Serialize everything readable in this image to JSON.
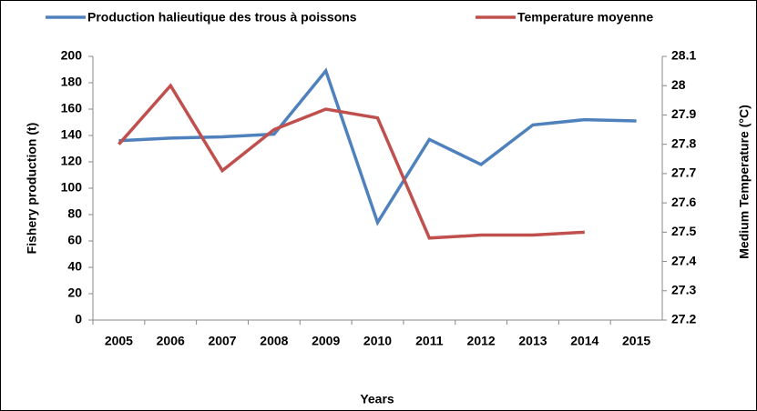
{
  "chart_data": {
    "type": "line",
    "x_label": "Years",
    "y_label": "Fishery production (t)",
    "y2_label": "Medium Temperature  (°C)",
    "categories": [
      "2005",
      "2006",
      "2007",
      "2008",
      "2009",
      "2010",
      "2011",
      "2012",
      "2013",
      "2014",
      "2015"
    ],
    "series": [
      {
        "name": "Production halieutique des trous à poissons",
        "color": "#4f81bd",
        "values": [
          136,
          138,
          139,
          141,
          189,
          74,
          137,
          118,
          148,
          152,
          151
        ]
      },
      {
        "name": "Temperature moyenne",
        "color": "#c0504d",
        "axis": "y2",
        "values": [
          27.8,
          28.0,
          27.71,
          27.85,
          27.92,
          27.89,
          27.48,
          27.49,
          27.49,
          27.5,
          null
        ]
      }
    ],
    "ylim": [
      0,
      200
    ],
    "yticks": [
      0,
      20,
      40,
      60,
      80,
      100,
      120,
      140,
      160,
      180,
      200
    ],
    "y2lim": [
      27.2,
      28.1
    ],
    "y2ticks": [
      27.2,
      27.3,
      27.4,
      27.5,
      27.6,
      27.7,
      27.8,
      27.9,
      28,
      28.1
    ],
    "legend": "top"
  }
}
